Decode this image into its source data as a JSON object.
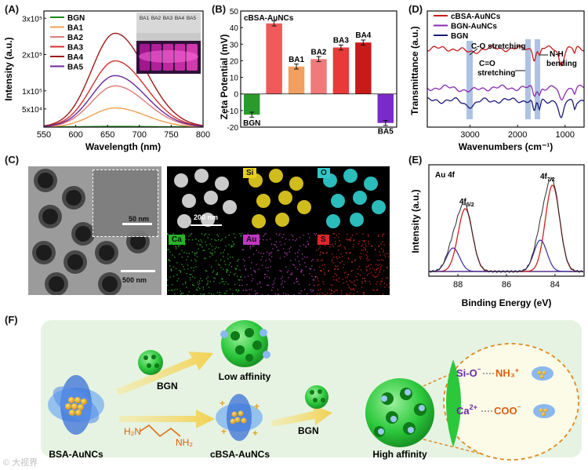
{
  "panels": {
    "A": {
      "label": "(A)",
      "ylabel": "Intensity (a.u.)",
      "xlabel": "Wavelength (nm)",
      "xticks": [
        "550",
        "600",
        "650",
        "700",
        "750",
        "800"
      ],
      "yticks": [
        "3x10⁵",
        "2x10⁵",
        "1x10⁵",
        "5x10⁴"
      ],
      "legend": [
        "BGN",
        "BA1",
        "BA2",
        "BA3",
        "BA4",
        "BA5"
      ],
      "vial_labels": [
        "BA1",
        "BA2",
        "BA3",
        "BA4",
        "BA5"
      ]
    },
    "B": {
      "label": "(B)",
      "ylabel": "Zeta Potential (mV)",
      "series_label": "cBSA-AuNCs",
      "yticks": [
        "-20",
        "-10",
        "0",
        "10",
        "20",
        "30",
        "40",
        "50"
      ]
    },
    "C": {
      "label": "(C)",
      "scale_inset": "50 nm",
      "scale_main": "500 nm",
      "scale_map": "200 nm",
      "map_labels": [
        "Si",
        "O",
        "Ca",
        "Au",
        "S"
      ]
    },
    "D": {
      "label": "(D)",
      "ylabel": "Transmittance (a.u.)",
      "xlabel": "Wavenumbers (cm⁻¹)",
      "xticks": [
        "3000",
        "2000",
        "1000"
      ],
      "legend": [
        "cBSA-AuNCs",
        "BGN-AuNCs",
        "BGN"
      ],
      "ann_co": "C-O stretching",
      "ann_c_eq_o_1": "C=O",
      "ann_c_eq_o_2": "stretching",
      "ann_nh_1": "N-H",
      "ann_nh_2": "bending"
    },
    "E": {
      "label": "(E)",
      "ylabel": "Intensity (a.u.)",
      "xlabel": "Binding Energy (eV)",
      "xticks": [
        "88",
        "86",
        "84"
      ],
      "title": "Au 4f",
      "peak1_base": "4f",
      "peak1_sub": "5/2",
      "peak2_base": "4f",
      "peak2_sub": "7/2"
    },
    "F": {
      "label": "(F)",
      "bsa_label": "BSA-AuNCs",
      "cbsa_label": "cBSA-AuNCs",
      "bgn_label_1": "BGN",
      "bgn_label_2": "BGN",
      "low_affinity": "Low affinity",
      "high_affinity": "High affinity",
      "diamine_h2n_left": "H₂N",
      "diamine_nh2_right": "NH₂",
      "si_o": "Si-O",
      "nh3": "NH₃",
      "ca": "Ca",
      "ca_charge": "2+",
      "coo": "COO",
      "minus": "⁻",
      "plus": "+"
    }
  },
  "chart_data": [
    {
      "panel": "A",
      "type": "line",
      "title": "",
      "xlabel": "Wavelength (nm)",
      "ylabel": "Intensity (a.u.)",
      "xlim": [
        550,
        800
      ],
      "ylim": [
        0,
        320000
      ],
      "series": [
        {
          "name": "BGN",
          "color": "#1a8a1a",
          "peak": 1000,
          "center": 662
        },
        {
          "name": "BA1",
          "color": "#f0a050",
          "peak": 52000,
          "center": 662
        },
        {
          "name": "BA2",
          "color": "#e07a7a",
          "peak": 112000,
          "center": 662
        },
        {
          "name": "BA3",
          "color": "#d43030",
          "peak": 180000,
          "center": 662
        },
        {
          "name": "BA4",
          "color": "#a01818",
          "peak": 255000,
          "center": 662
        },
        {
          "name": "BA5",
          "color": "#6a2a9a",
          "peak": 140000,
          "center": 662
        }
      ]
    },
    {
      "panel": "B",
      "type": "bar",
      "title": "cBSA-AuNCs",
      "xlabel": "",
      "ylabel": "Zeta Potential (mV)",
      "ylim": [
        -20,
        50
      ],
      "categories": [
        "BGN",
        "",
        "BA1",
        "BA2",
        "BA3",
        "BA4",
        "BA5"
      ],
      "values": [
        -12.5,
        42.5,
        16.5,
        21,
        28,
        31,
        -17.5
      ],
      "colors": [
        "#2a9a2a",
        "#f05a5a",
        "#f0a060",
        "#f07a7a",
        "#e83a3a",
        "#c81a1a",
        "#7a2ac8"
      ],
      "category_labels": [
        "BGN",
        "BA1",
        "BA2",
        "BA3",
        "BA4",
        "BA5"
      ]
    },
    {
      "panel": "D",
      "type": "line",
      "xlabel": "Wavenumbers (cm⁻¹)",
      "ylabel": "Transmittance (a.u.)",
      "xlim": [
        3900,
        600
      ],
      "series": [
        {
          "name": "cBSA-AuNCs",
          "color": "#c81a1a"
        },
        {
          "name": "BGN-AuNCs",
          "color": "#8a2ab0"
        },
        {
          "name": "BGN",
          "color": "#1a1a7a"
        }
      ]
    },
    {
      "panel": "E",
      "type": "line",
      "xlabel": "Binding Energy (eV)",
      "ylabel": "Intensity (a.u.)",
      "xlim": [
        89.2,
        82.8
      ],
      "title": "Au 4f"
    }
  ],
  "watermark": "© 大视界"
}
